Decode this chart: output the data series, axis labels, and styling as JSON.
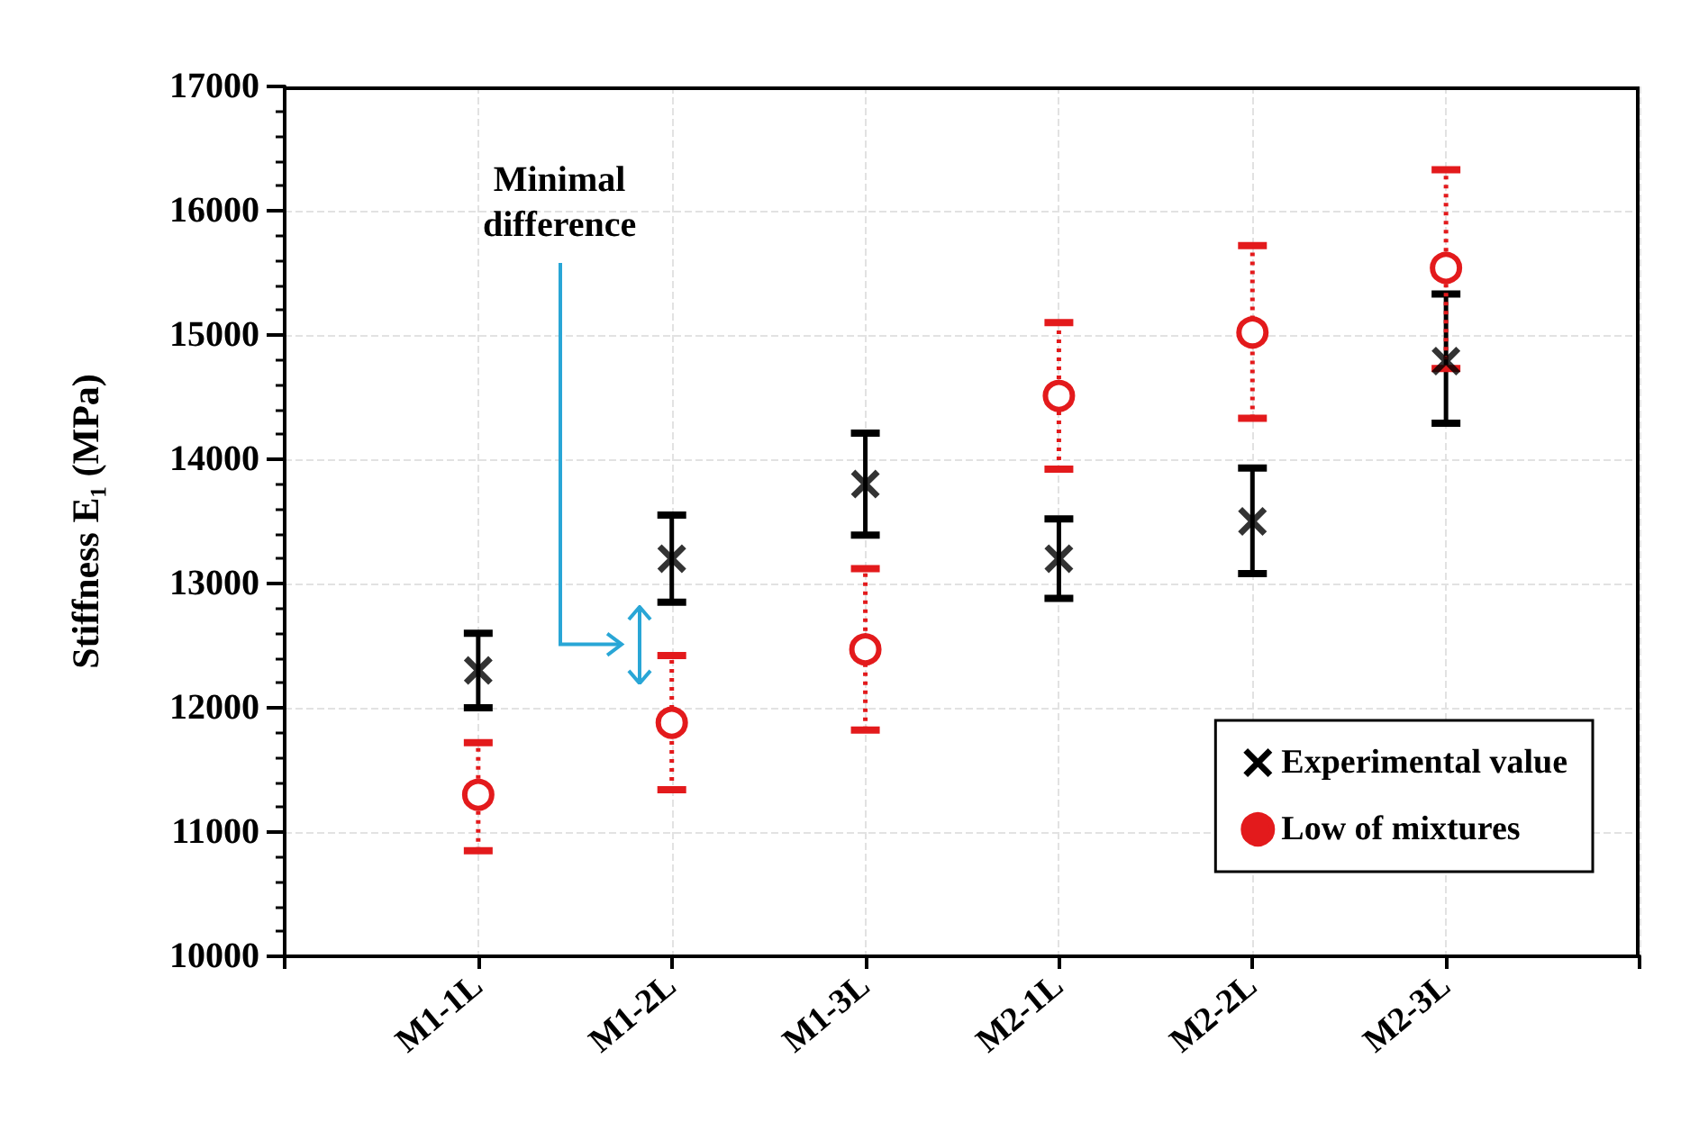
{
  "chart_data": {
    "type": "scatter",
    "ylabel": "Stiffness E₁ (MPa)",
    "categories": [
      "M1-1L",
      "M1-2L",
      "M1-3L",
      "M2-1L",
      "M2-2L",
      "M2-3L"
    ],
    "series": [
      {
        "name": "Experimental value",
        "color": "#000000",
        "marker": "cross",
        "line_style": "solid",
        "values": [
          12300,
          13200,
          13800,
          13200,
          13500,
          14790
        ],
        "errors": [
          [
            12000,
            12600
          ],
          [
            12850,
            13550
          ],
          [
            13390,
            14210
          ],
          [
            12880,
            13520
          ],
          [
            13080,
            13930
          ],
          [
            14290,
            15330
          ]
        ]
      },
      {
        "name": "Low of mixtures",
        "color": "#e31a1c",
        "marker": "circle",
        "line_style": "dotted",
        "values": [
          11300,
          11880,
          12470,
          14510,
          15020,
          15540
        ],
        "errors": [
          [
            10850,
            11720
          ],
          [
            11340,
            12420
          ],
          [
            11820,
            13120
          ],
          [
            13920,
            15100
          ],
          [
            14330,
            15720
          ],
          [
            14730,
            16330
          ]
        ]
      }
    ],
    "ylim": [
      10000,
      17000
    ],
    "yticks": [
      10000,
      11000,
      12000,
      13000,
      14000,
      15000,
      16000,
      17000
    ],
    "grid": true,
    "legend": "bottom right",
    "annotations": [
      "Minimal\ndifference"
    ]
  }
}
